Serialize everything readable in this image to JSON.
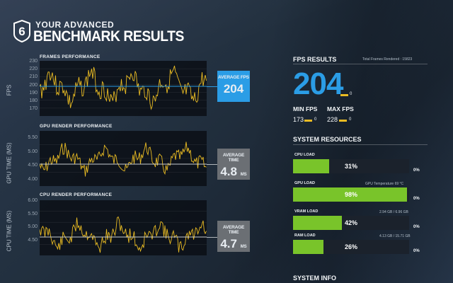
{
  "header": {
    "logo_digit": "6",
    "subtitle": "YOUR ADVANCED",
    "title": "BENCHMARK RESULTS"
  },
  "frames": {
    "title": "FRAMES PERFORMANCE",
    "ylabel": "FPS",
    "ticks": [
      "230",
      "220",
      "210",
      "200",
      "190",
      "180",
      "170"
    ],
    "stat_label": "AVERAGE FPS",
    "stat_value": "204",
    "stat_unit": "",
    "color": "#2b9de6"
  },
  "gpu": {
    "title": "GPU RENDER PERFORMANCE",
    "ylabel": "GPU TIME (MS)",
    "ticks": [
      "5.50",
      "5.00",
      "4.50",
      "4.00"
    ],
    "stat_label": "AVERAGE TIME",
    "stat_value": "4.8",
    "stat_unit": "MS",
    "color": "#6b6f74"
  },
  "cpu": {
    "title": "CPU RENDER PERFORMANCE",
    "ylabel": "CPU TIME (MS)",
    "ticks": [
      "6.00",
      "5.50",
      "5.00",
      "4.50"
    ],
    "stat_label": "AVERAGE TIME",
    "stat_value": "4.7",
    "stat_unit": "MS",
    "color": "#6b6f74"
  },
  "fps_results": {
    "heading": "FPS RESULTS",
    "total_frames": "Total Frames Rendered : 15823",
    "big_value": "204",
    "big_zero": "0",
    "min_label": "MIN FPS",
    "min_value": "173",
    "min_zero": "0",
    "max_label": "MAX FPS",
    "max_value": "228",
    "max_zero": "0"
  },
  "resources": {
    "heading": "SYSTEM RESOURCES",
    "items": [
      {
        "label": "CPU LOAD",
        "note": "",
        "percent_text": "31%",
        "fraction": 0.31,
        "right": "0%"
      },
      {
        "label": "GPU LOAD",
        "note": "GPU Temperature 69 °C",
        "percent_text": "98%",
        "fraction": 0.98,
        "right": "0%"
      },
      {
        "label": "VRAM LOAD",
        "note": "2.94 GB / 6.96 GB",
        "percent_text": "42%",
        "fraction": 0.42,
        "right": "0%"
      },
      {
        "label": "RAM LOAD",
        "note": "4.13 GB / 15.71 GB",
        "percent_text": "26%",
        "fraction": 0.26,
        "right": "0%"
      }
    ]
  },
  "system_info": {
    "heading": "SYSTEM INFO"
  },
  "colors": {
    "accent": "#2b9de6",
    "line": "#e9bb23",
    "bar": "#79c42a"
  }
}
